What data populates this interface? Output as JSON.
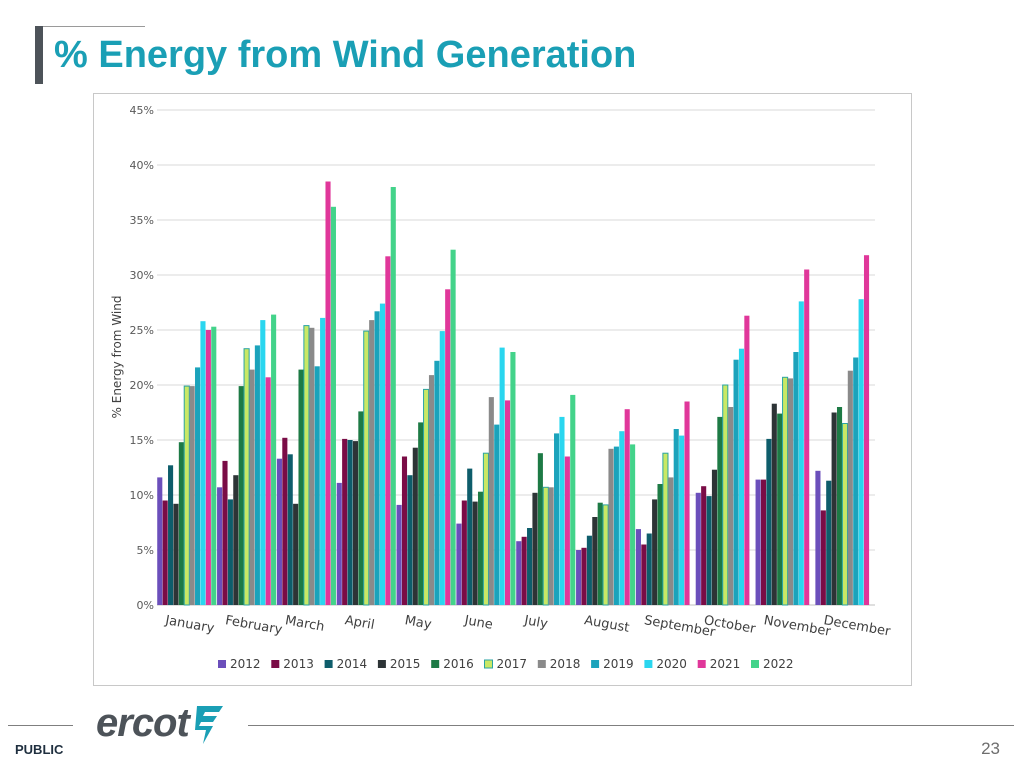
{
  "slide": {
    "title": "% Energy from Wind Generation",
    "footer_label": "PUBLIC",
    "page_number": "23",
    "logo_text": "ercot"
  },
  "colors": {
    "title": "#1a9fb5",
    "accent_bar": "#4d5359",
    "logo": "#4d5359",
    "logo_mark": "#1a9fb5"
  },
  "chart_data": {
    "type": "bar",
    "title": "",
    "xlabel": "",
    "ylabel": "% Energy from Wind",
    "ylim": [
      0,
      45
    ],
    "yticks": [
      0,
      5,
      10,
      15,
      20,
      25,
      30,
      35,
      40,
      45
    ],
    "ytick_labels": [
      "0%",
      "5%",
      "10%",
      "15%",
      "20%",
      "25%",
      "30%",
      "35%",
      "40%",
      "45%"
    ],
    "grid": true,
    "legend_position": "bottom",
    "categories": [
      "January",
      "February",
      "March",
      "April",
      "May",
      "June",
      "July",
      "August",
      "September",
      "October",
      "November",
      "December"
    ],
    "series": [
      {
        "name": "2012",
        "color": "#6b4fbb",
        "values": [
          11.6,
          10.7,
          13.3,
          11.1,
          9.1,
          7.4,
          5.8,
          5.0,
          6.9,
          10.2,
          11.4,
          12.2
        ]
      },
      {
        "name": "2013",
        "color": "#7a0c46",
        "values": [
          9.5,
          13.1,
          15.2,
          15.1,
          13.5,
          9.5,
          6.2,
          5.2,
          5.5,
          10.8,
          11.4,
          8.6
        ]
      },
      {
        "name": "2014",
        "color": "#0e5d6b",
        "values": [
          12.7,
          9.6,
          13.7,
          15.0,
          11.8,
          12.4,
          7.0,
          6.3,
          6.5,
          9.9,
          15.1,
          11.3
        ]
      },
      {
        "name": "2015",
        "color": "#2d3436",
        "values": [
          9.2,
          11.8,
          9.2,
          14.9,
          14.3,
          9.4,
          10.2,
          8.0,
          9.6,
          12.3,
          18.3,
          17.5
        ]
      },
      {
        "name": "2016",
        "color": "#1d7a45",
        "values": [
          14.8,
          19.9,
          21.4,
          17.6,
          16.6,
          10.3,
          13.8,
          9.3,
          11.0,
          17.1,
          17.4,
          18.0
        ]
      },
      {
        "name": "2017",
        "color": "#c9e865",
        "border": "#2aa3a3",
        "values": [
          19.9,
          23.3,
          25.4,
          24.9,
          19.6,
          13.8,
          10.7,
          9.1,
          13.8,
          20.0,
          20.7,
          16.5
        ]
      },
      {
        "name": "2018",
        "color": "#8a8a8a",
        "values": [
          19.9,
          21.4,
          25.2,
          25.9,
          20.9,
          18.9,
          10.7,
          14.2,
          11.6,
          18.0,
          20.6,
          21.3
        ]
      },
      {
        "name": "2019",
        "color": "#1ba3bb",
        "values": [
          21.6,
          23.6,
          21.7,
          26.7,
          22.2,
          16.4,
          15.6,
          14.4,
          16.0,
          22.3,
          23.0,
          22.5
        ]
      },
      {
        "name": "2020",
        "color": "#2ad6ef",
        "values": [
          25.8,
          25.9,
          26.1,
          27.4,
          24.9,
          23.4,
          17.1,
          15.8,
          15.4,
          23.3,
          27.6,
          27.8
        ]
      },
      {
        "name": "2021",
        "color": "#e0379a",
        "values": [
          25.0,
          20.7,
          38.5,
          31.7,
          28.7,
          18.6,
          13.5,
          17.8,
          18.5,
          26.3,
          30.5,
          31.8
        ]
      },
      {
        "name": "2022",
        "color": "#43d38a",
        "values": [
          25.3,
          26.4,
          36.2,
          38.0,
          32.3,
          23.0,
          19.1,
          14.6,
          null,
          null,
          null,
          null
        ]
      }
    ]
  }
}
